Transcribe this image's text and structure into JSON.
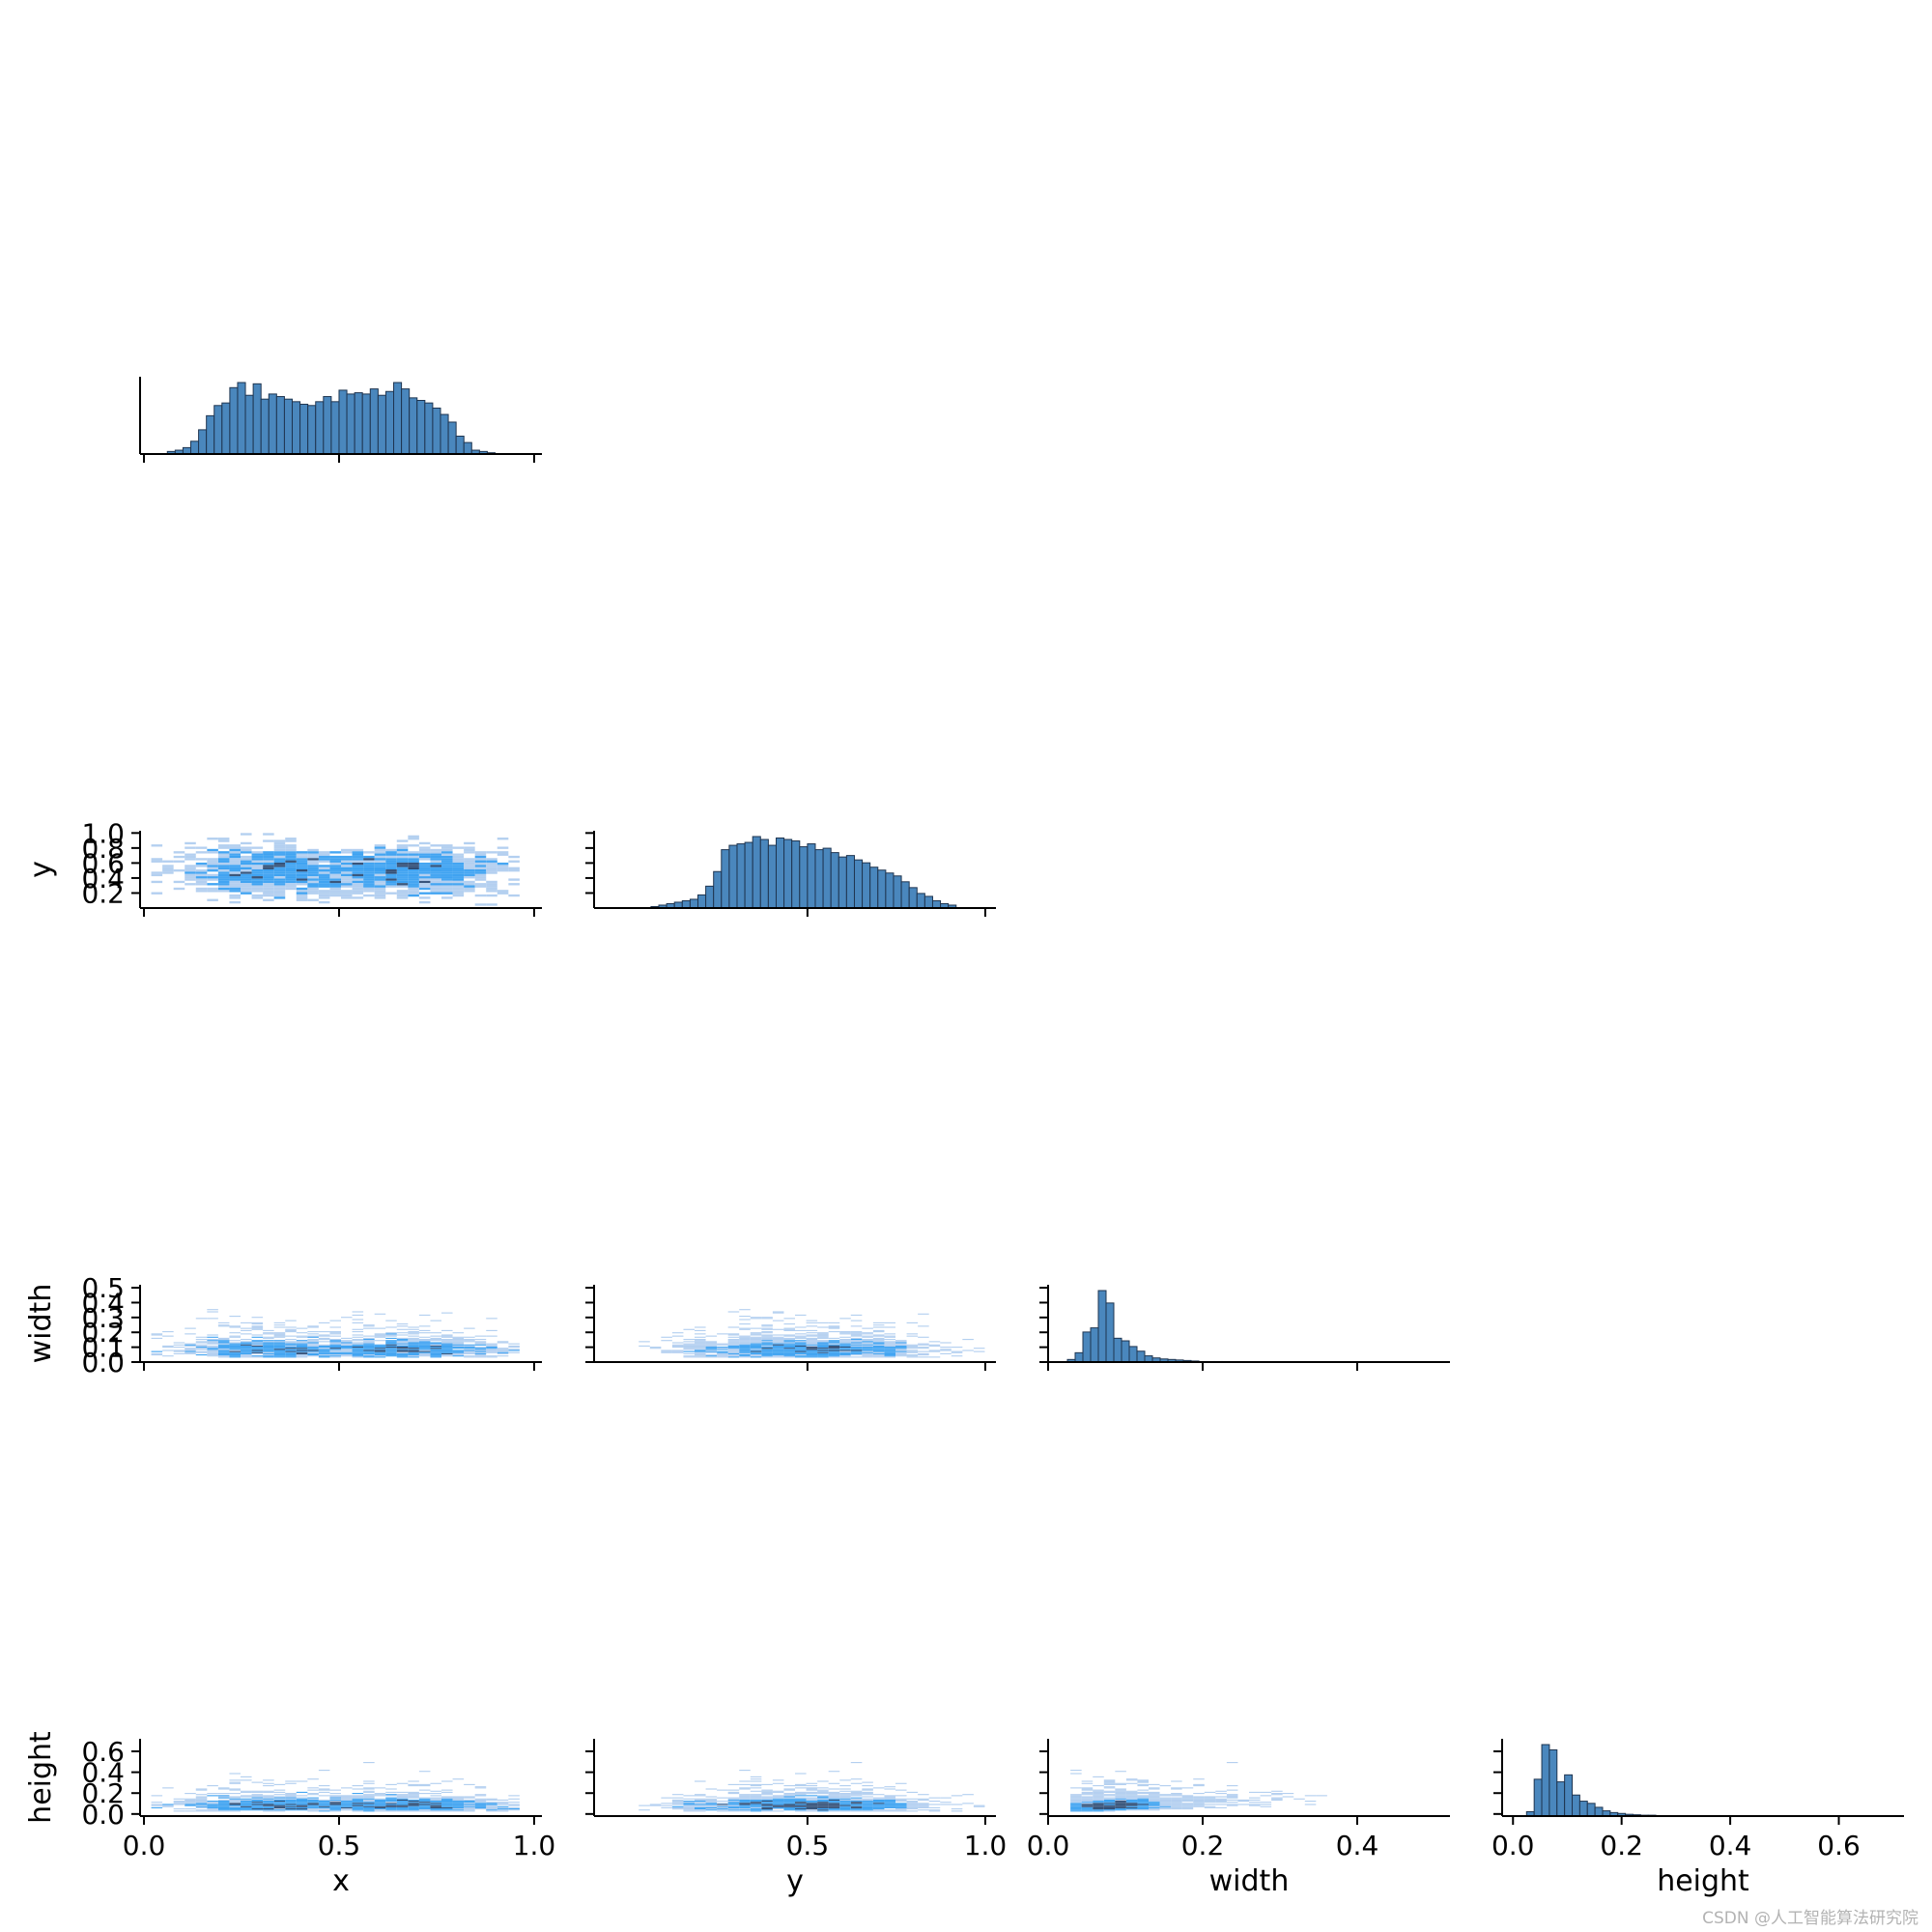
{
  "chart_data": {
    "type": "pairplot",
    "variables": [
      "x",
      "y",
      "width",
      "height"
    ],
    "style": {
      "bar_color": "#4a87bd",
      "bar_edge": "#1f3550",
      "heat_light": "#a8c8ee",
      "heat_mid": "#2e9bf0",
      "heat_dark": "#2e4c74"
    },
    "axes_ticks": {
      "x": {
        "ticks": [
          0.0,
          0.5,
          1.0
        ],
        "labels": [
          "0.0",
          "0.5",
          "1.0"
        ],
        "range": [
          -0.01,
          1.02
        ]
      },
      "y": {
        "ticks_col": [
          0.5,
          1.0
        ],
        "labels_col": [
          "0.5",
          "1.0"
        ],
        "range_col": [
          -0.1,
          1.03
        ],
        "ticks_row": [
          0.2,
          0.4,
          0.6,
          0.8,
          1.0
        ],
        "labels_row": [
          "0.2",
          "0.4",
          "0.6",
          "0.8",
          "1.0"
        ],
        "range_row": [
          0.0,
          1.03
        ]
      },
      "width": {
        "ticks_col": [
          0.0,
          0.2,
          0.4
        ],
        "labels_col": [
          "0.0",
          "0.2",
          "0.4"
        ],
        "range_col": [
          0.0,
          0.52
        ],
        "ticks_row": [
          0.0,
          0.1,
          0.2,
          0.3,
          0.4,
          0.5
        ],
        "labels_row": [
          "0.0",
          "0.1",
          "0.2",
          "0.3",
          "0.4",
          "0.5"
        ],
        "range_row": [
          0.0,
          0.52
        ]
      },
      "height": {
        "ticks_col": [
          0.0,
          0.2,
          0.4,
          0.6
        ],
        "labels_col": [
          "0.0",
          "0.2",
          "0.4",
          "0.6"
        ],
        "range_col": [
          -0.02,
          0.72
        ],
        "ticks_row": [
          0.0,
          0.2,
          0.4,
          0.6
        ],
        "labels_row": [
          "0.0",
          "0.2",
          "0.4",
          "0.6"
        ],
        "range_row": [
          -0.02,
          0.72
        ]
      }
    },
    "histograms": {
      "x": {
        "start": 0.06,
        "bin_width": 0.02,
        "counts": [
          2,
          3,
          5,
          10,
          19,
          30,
          38,
          40,
          52,
          56,
          46,
          55,
          43,
          47,
          45,
          43,
          41,
          39,
          38,
          41,
          45,
          41,
          50,
          47,
          48,
          47,
          51,
          46,
          49,
          56,
          51,
          44,
          42,
          40,
          36,
          31,
          25,
          14,
          9,
          3,
          2,
          1
        ]
      },
      "y": {
        "start": 0.06,
        "bin_width": 0.022,
        "counts": [
          1,
          2,
          3,
          4,
          5,
          6,
          9,
          15,
          25,
          40,
          43,
          44,
          45,
          49,
          47,
          43,
          48,
          47,
          46,
          42,
          44,
          40,
          41,
          38,
          35,
          36,
          33,
          31,
          28,
          26,
          24,
          22,
          18,
          14,
          10,
          8,
          5,
          3,
          2
        ]
      },
      "width": {
        "start": 0.025,
        "bin_width": 0.01,
        "counts": [
          5,
          18,
          58,
          66,
          138,
          114,
          46,
          41,
          30,
          21,
          12,
          8,
          6,
          5,
          4,
          3,
          2,
          1,
          1,
          1,
          1,
          0,
          1,
          0,
          0,
          1
        ]
      },
      "height": {
        "start": 0.025,
        "bin_width": 0.014,
        "counts": [
          10,
          84,
          163,
          151,
          78,
          94,
          48,
          34,
          29,
          20,
          12,
          8,
          6,
          4,
          3,
          2,
          2,
          1,
          1,
          1,
          1,
          1,
          0,
          1,
          0,
          1
        ]
      }
    },
    "scatter_summary": {
      "y_vs_x": "heart-shaped density; x 0.04-0.96, y 0.05-0.98; densest near x=0.4, y=0.35",
      "width_vs_x": "mostly width 0.03-0.12, sparse up to 0.5",
      "width_vs_y": "mostly width 0.03-0.12, sparse up to 0.5",
      "height_vs_x": "mostly height 0.03-0.12, sparse up to 0.69",
      "height_vs_y": "mostly height 0.03-0.12, sparse up to 0.69",
      "height_vs_width": "positive correlation, dense near (0.06, 0.06)"
    }
  },
  "watermark": "CSDN @人工智能算法研究院"
}
